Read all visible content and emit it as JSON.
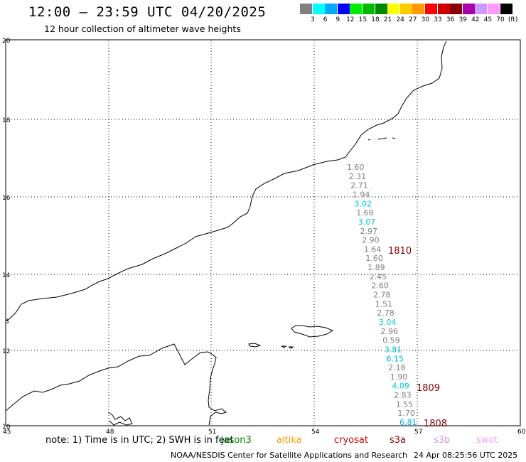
{
  "header": {
    "title": "12:00 — 23:59 UTC 04/20/2025",
    "subtitle": "12 hour collection of altimeter wave heights"
  },
  "color_scale": {
    "colors": [
      "#808080",
      "#00ffff",
      "#00aaff",
      "#0000ff",
      "#00ee00",
      "#00bb00",
      "#008800",
      "#ffff00",
      "#ffcc00",
      "#ff9900",
      "#ff0000",
      "#cc0000",
      "#880000",
      "#aa00aa",
      "#cc99ff",
      "#ff99ff",
      "#000000"
    ],
    "labels": [
      "3",
      "6",
      "9",
      "12",
      "15",
      "18",
      "21",
      "24",
      "27",
      "30",
      "33",
      "36",
      "39",
      "42",
      "45",
      "70",
      "(ft)"
    ]
  },
  "axes": {
    "x_ticks": [
      "45",
      "48",
      "51",
      "54",
      "57",
      "60"
    ],
    "y_ticks": [
      "20",
      "18",
      "16",
      "14",
      "12",
      "10"
    ],
    "partial_label": "3"
  },
  "track_points": [
    {
      "value": "1.60",
      "color": "#808080"
    },
    {
      "value": "2.31",
      "color": "#808080"
    },
    {
      "value": "2.71",
      "color": "#808080"
    },
    {
      "value": "1.94",
      "color": "#808080"
    },
    {
      "value": "3.02",
      "color": "#00cccc"
    },
    {
      "value": "1.68",
      "color": "#808080"
    },
    {
      "value": "3.07",
      "color": "#00cccc"
    },
    {
      "value": "2.97",
      "color": "#808080"
    },
    {
      "value": "2.90",
      "color": "#808080"
    },
    {
      "value": "1.64",
      "color": "#808080"
    },
    {
      "value": "1.60",
      "color": "#808080"
    },
    {
      "value": "1.89",
      "color": "#808080"
    },
    {
      "value": "2.45",
      "color": "#808080"
    },
    {
      "value": "2.60",
      "color": "#808080"
    },
    {
      "value": "2.78",
      "color": "#808080"
    },
    {
      "value": "1.51",
      "color": "#808080"
    },
    {
      "value": "2.78",
      "color": "#808080"
    },
    {
      "value": "3.04",
      "color": "#00cccc"
    },
    {
      "value": "2.96",
      "color": "#808080"
    },
    {
      "value": "0.59",
      "color": "#808080"
    },
    {
      "value": "3.81",
      "color": "#00cccc"
    },
    {
      "value": "6.15",
      "color": "#00aaff"
    },
    {
      "value": "2.18",
      "color": "#808080"
    },
    {
      "value": "1.90",
      "color": "#808080"
    },
    {
      "value": "4.09",
      "color": "#00cccc"
    },
    {
      "value": "2.83",
      "color": "#808080"
    },
    {
      "value": "1.55",
      "color": "#808080"
    },
    {
      "value": "1.70",
      "color": "#808080"
    },
    {
      "value": "6.81",
      "color": "#00aaff"
    }
  ],
  "pass_times": [
    {
      "label": "1810",
      "color": "#880000"
    },
    {
      "label": "1809",
      "color": "#880000"
    },
    {
      "label": "1808",
      "color": "#880000"
    }
  ],
  "footer": {
    "note": "note: 1) Time is in UTC; 2) SWH is in feet",
    "satellites": [
      {
        "name": "jason3",
        "color": "#008800"
      },
      {
        "name": "altika",
        "color": "#ff9900"
      },
      {
        "name": "cryosat",
        "color": "#cc0000"
      },
      {
        "name": "s3a",
        "color": "#880000"
      },
      {
        "name": "s3b",
        "color": "#cc99ff"
      },
      {
        "name": "swot",
        "color": "#ff99ff"
      }
    ],
    "credit": "NOAA/NESDIS Center for Satellite Applications and Research",
    "timestamp": "24 Apr 08:25:56 UTC 2025"
  }
}
